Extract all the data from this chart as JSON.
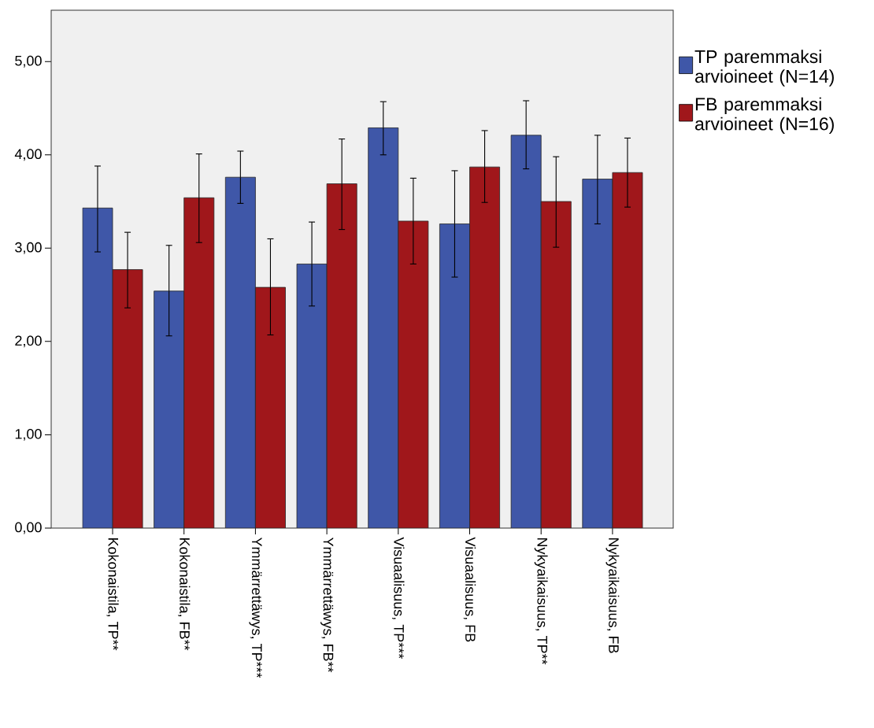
{
  "chart_data": {
    "type": "bar",
    "categories": [
      "Kokonaistila, TP**",
      "Kokonaistila, FB**",
      "Ymmärrettäwys, TP***",
      "Ymmärrettäwys, FB**",
      "Visuaalisuus, TP***",
      "Visuaalisuus, FB",
      "Nykyaikaisuus, TP**",
      "Nykyaikaisuus, FB"
    ],
    "series": [
      {
        "name": "TP paremmaksi arvioineet (N=14)",
        "color": "#3f57a8",
        "values": [
          3.43,
          2.54,
          3.76,
          2.83,
          4.29,
          3.26,
          4.21,
          3.74
        ],
        "errors": [
          [
            2.96,
            3.88
          ],
          [
            2.06,
            3.03
          ],
          [
            3.48,
            4.04
          ],
          [
            2.38,
            3.28
          ],
          [
            4.0,
            4.57
          ],
          [
            2.69,
            3.83
          ],
          [
            3.85,
            4.58
          ],
          [
            3.26,
            4.21
          ]
        ]
      },
      {
        "name": "FB paremmaksi arvioineet (N=16)",
        "color": "#a0171b",
        "values": [
          2.77,
          3.54,
          2.58,
          3.69,
          3.29,
          3.87,
          3.5,
          3.81
        ],
        "errors": [
          [
            2.36,
            3.17
          ],
          [
            3.06,
            4.01
          ],
          [
            2.07,
            3.1
          ],
          [
            3.2,
            4.17
          ],
          [
            2.83,
            3.75
          ],
          [
            3.49,
            4.26
          ],
          [
            3.01,
            3.98
          ],
          [
            3.44,
            4.18
          ]
        ]
      }
    ],
    "ylim": [
      0,
      5.55
    ],
    "yticks": [
      {
        "value": 0,
        "label": "0,00"
      },
      {
        "value": 1,
        "label": "1,00"
      },
      {
        "value": 2,
        "label": "2,00"
      },
      {
        "value": 3,
        "label": "3,00"
      },
      {
        "value": 4,
        "label": "4,00"
      },
      {
        "value": 5,
        "label": "5,00"
      }
    ],
    "grid": false,
    "legend": "top right"
  }
}
